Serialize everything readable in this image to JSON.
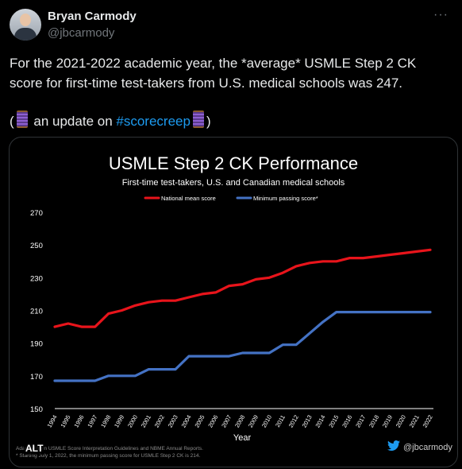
{
  "tweet": {
    "name": "Bryan Carmody",
    "handle": "@jbcarmody",
    "more": "···",
    "text": "For the 2021-2022 academic year, the *average* USMLE Step 2 CK score for first-time test-takers from U.S. medical schools was 247.",
    "line2_prefix": "(",
    "line2_mid": " an update on ",
    "hashtag": "#scorecreep",
    "line2_suffix": ")",
    "alt_badge": "ALT",
    "thread_icon": "spool-of-thread-emoji"
  },
  "image": {
    "watermark_handle": "@jbcarmody",
    "watermark_icon": "twitter-bird-icon",
    "source_line1": "Adapted from USMLE Score Interpretation Guidelines and NBME Annual Reports.",
    "source_line2": "* Starting July 1, 2022, the minimum passing score for USMLE Step 2 CK is 214."
  },
  "chart_data": {
    "type": "line",
    "title": "USMLE Step 2 CK Performance",
    "subtitle": "First-time test-takers, U.S. and Canadian medical schools",
    "xlabel": "Year",
    "ylabel": "",
    "ylim": [
      150,
      270
    ],
    "yticks": [
      150,
      170,
      190,
      210,
      230,
      250,
      270
    ],
    "legend_placement": "top-center",
    "grid": false,
    "x": [
      "1994",
      "1995",
      "1996",
      "1997",
      "1998",
      "1999",
      "2000",
      "2001",
      "2002",
      "2003",
      "2004",
      "2005",
      "2006",
      "2007",
      "2008",
      "2009",
      "2010",
      "2011",
      "2012",
      "2013",
      "2014",
      "2015",
      "2016",
      "2017",
      "2018",
      "2019",
      "2020",
      "2021",
      "2022"
    ],
    "series": [
      {
        "name": "National mean score",
        "color": "#e8141b",
        "values": [
          200,
          202,
          200,
          200,
          208,
          210,
          213,
          215,
          216,
          216,
          218,
          220,
          221,
          225,
          226,
          229,
          230,
          233,
          237,
          239,
          240,
          240,
          242,
          242,
          243,
          244,
          245,
          246,
          247
        ]
      },
      {
        "name": "Minimum passing score*",
        "color": "#4472c4",
        "values": [
          167,
          167,
          167,
          167,
          170,
          170,
          170,
          174,
          174,
          174,
          182,
          182,
          182,
          182,
          184,
          184,
          184,
          189,
          189,
          196,
          203,
          209,
          209,
          209,
          209,
          209,
          209,
          209,
          209
        ]
      }
    ]
  }
}
